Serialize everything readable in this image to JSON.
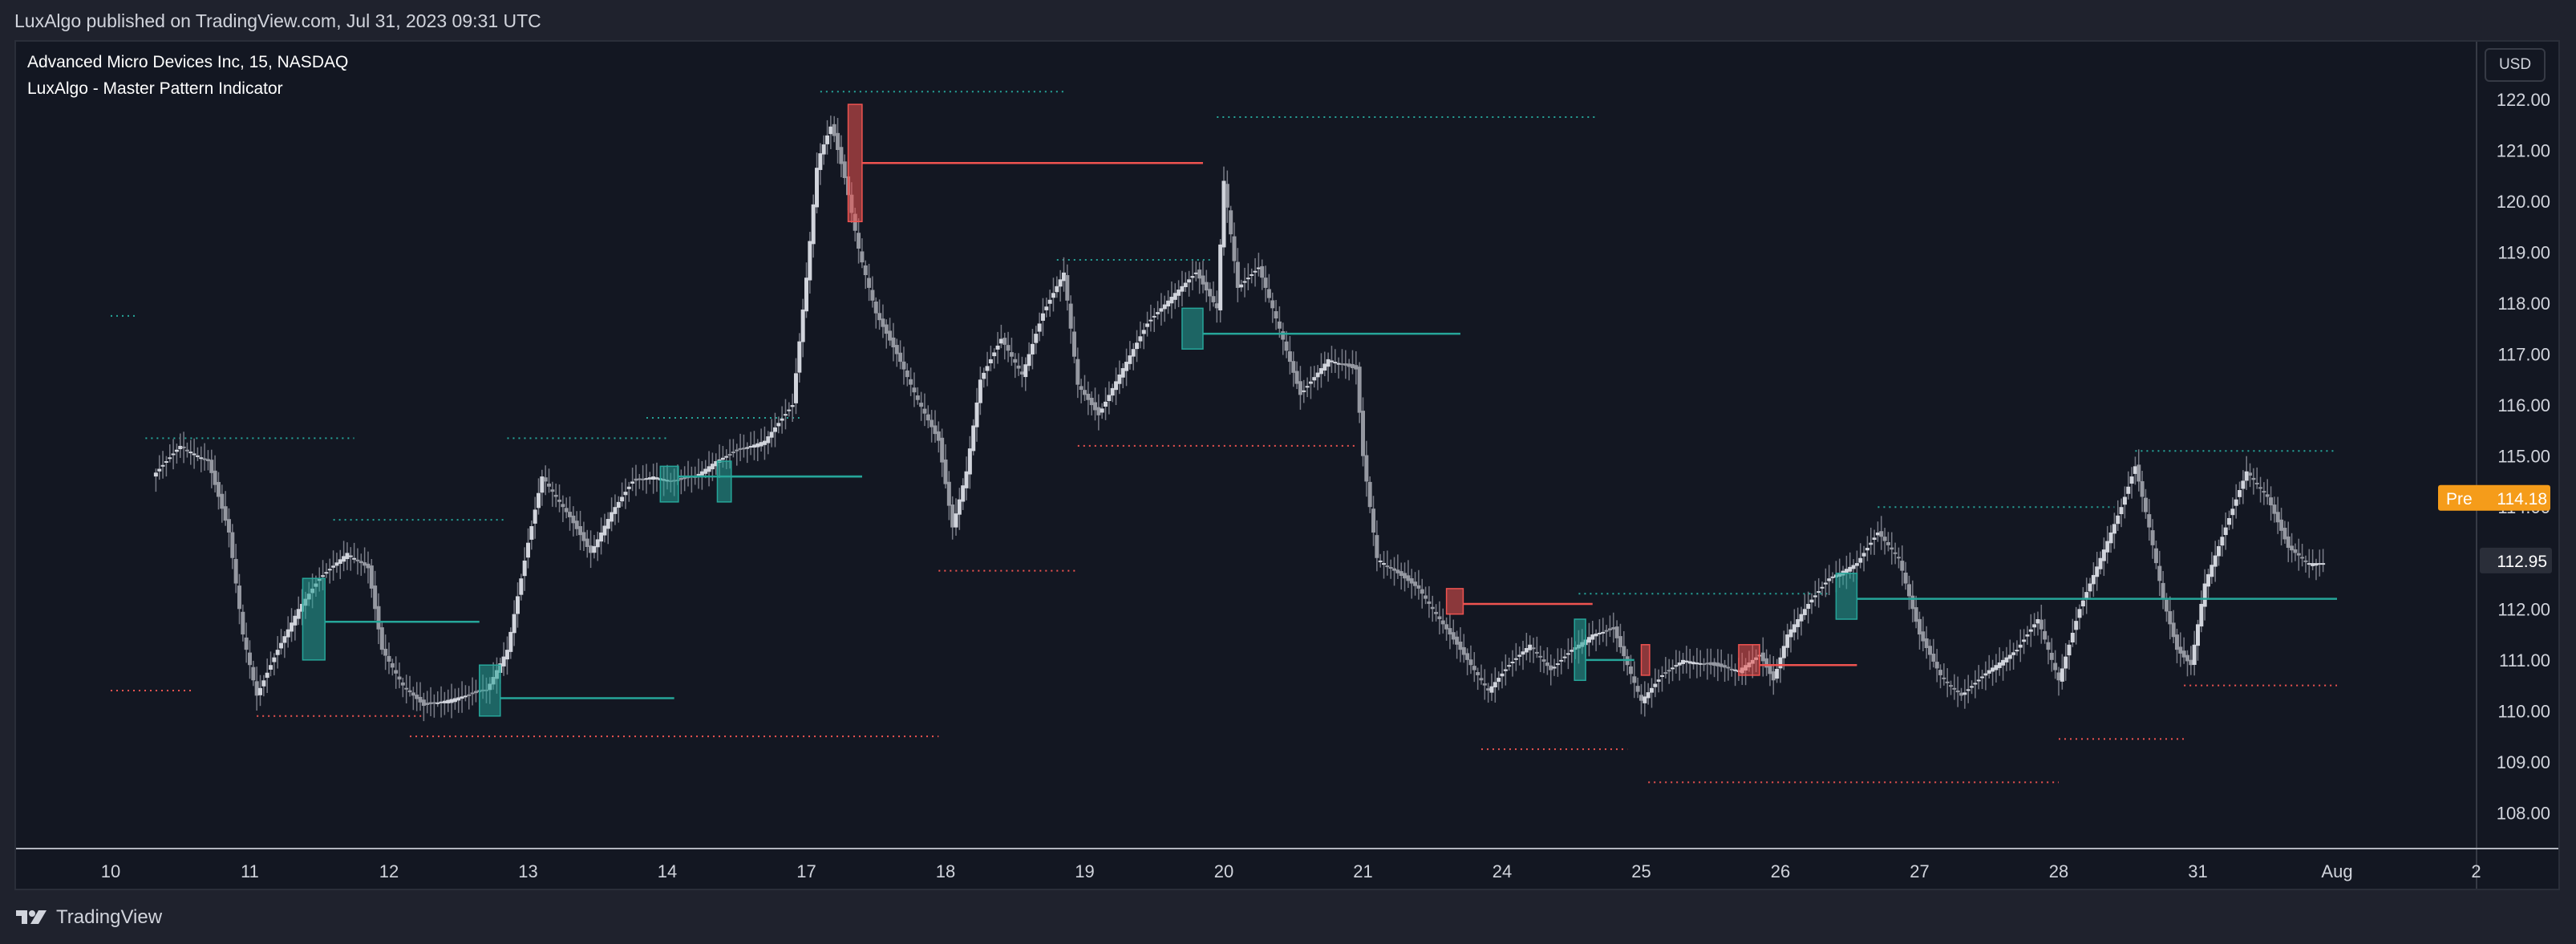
{
  "header": {
    "publish_text": "LuxAlgo published on TradingView.com, Jul 31, 2023 09:31 UTC"
  },
  "legend": {
    "symbol": "Advanced Micro Devices Inc, 15, NASDAQ",
    "indicator": "LuxAlgo - Master Pattern Indicator"
  },
  "currency": "USD",
  "footer": {
    "brand": "TradingView"
  },
  "colors": {
    "background": "#131722",
    "candle": "#b2b5be",
    "bullish": "#26a69a",
    "bearish": "#ef5350",
    "badge": "#f59c1a",
    "price_label": "#2a2e39"
  },
  "chart_data": {
    "type": "candlestick",
    "title": "",
    "ylim": [
      107.3,
      122.5
    ],
    "y_ticks": [
      "108.00",
      "109.00",
      "110.00",
      "111.00",
      "112.00",
      "113.00",
      "114.00",
      "115.00",
      "116.00",
      "117.00",
      "118.00",
      "119.00",
      "120.00",
      "121.00",
      "122.00"
    ],
    "x_ticks": [
      {
        "label": "10",
        "day": 1
      },
      {
        "label": "11",
        "day": 2
      },
      {
        "label": "12",
        "day": 3
      },
      {
        "label": "13",
        "day": 4
      },
      {
        "label": "14",
        "day": 5
      },
      {
        "label": "17",
        "day": 6
      },
      {
        "label": "18",
        "day": 7
      },
      {
        "label": "19",
        "day": 8
      },
      {
        "label": "20",
        "day": 9
      },
      {
        "label": "21",
        "day": 10
      },
      {
        "label": "24",
        "day": 11
      },
      {
        "label": "25",
        "day": 12
      },
      {
        "label": "26",
        "day": 13
      },
      {
        "label": "27",
        "day": 14
      },
      {
        "label": "28",
        "day": 15
      },
      {
        "label": "31",
        "day": 16
      },
      {
        "label": "Aug",
        "day": 17
      },
      {
        "label": "2",
        "day": 18
      }
    ],
    "price_path": [
      [
        0.3,
        114.6
      ],
      [
        0.5,
        115.2
      ],
      [
        0.7,
        114.9
      ],
      [
        0.85,
        113.5
      ],
      [
        0.95,
        111.5
      ],
      [
        1.05,
        110.3
      ],
      [
        1.2,
        111.2
      ],
      [
        1.35,
        112.0
      ],
      [
        1.5,
        112.6
      ],
      [
        1.7,
        113.1
      ],
      [
        1.85,
        112.8
      ],
      [
        1.95,
        111.2
      ],
      [
        2.1,
        110.5
      ],
      [
        2.25,
        110.1
      ],
      [
        2.4,
        110.2
      ],
      [
        2.55,
        110.3
      ],
      [
        2.7,
        110.4
      ],
      [
        2.85,
        111.2
      ],
      [
        3.0,
        113.3
      ],
      [
        3.1,
        114.6
      ],
      [
        3.3,
        113.8
      ],
      [
        3.45,
        113.1
      ],
      [
        3.6,
        113.9
      ],
      [
        3.75,
        114.5
      ],
      [
        3.9,
        114.6
      ],
      [
        4.05,
        114.5
      ],
      [
        4.2,
        114.6
      ],
      [
        4.35,
        114.9
      ],
      [
        4.5,
        115.1
      ],
      [
        4.7,
        115.3
      ],
      [
        4.9,
        116.0
      ],
      [
        5.0,
        118.5
      ],
      [
        5.08,
        120.8
      ],
      [
        5.18,
        121.5
      ],
      [
        5.28,
        120.4
      ],
      [
        5.38,
        119.0
      ],
      [
        5.5,
        117.8
      ],
      [
        5.65,
        117.0
      ],
      [
        5.8,
        116.1
      ],
      [
        5.95,
        115.3
      ],
      [
        6.05,
        113.6
      ],
      [
        6.15,
        114.7
      ],
      [
        6.25,
        116.5
      ],
      [
        6.4,
        117.3
      ],
      [
        6.55,
        116.6
      ],
      [
        6.7,
        117.8
      ],
      [
        6.85,
        118.6
      ],
      [
        6.95,
        116.4
      ],
      [
        7.1,
        115.8
      ],
      [
        7.25,
        116.6
      ],
      [
        7.45,
        117.6
      ],
      [
        7.65,
        118.2
      ],
      [
        7.8,
        118.6
      ],
      [
        7.95,
        117.9
      ],
      [
        8.0,
        120.4
      ],
      [
        8.1,
        118.3
      ],
      [
        8.25,
        118.7
      ],
      [
        8.4,
        117.5
      ],
      [
        8.55,
        116.2
      ],
      [
        8.75,
        116.9
      ],
      [
        8.95,
        116.7
      ],
      [
        9.0,
        115.0
      ],
      [
        9.1,
        113.0
      ],
      [
        9.25,
        112.7
      ],
      [
        9.4,
        112.4
      ],
      [
        9.55,
        111.8
      ],
      [
        9.7,
        111.2
      ],
      [
        9.9,
        110.4
      ],
      [
        10.05,
        110.9
      ],
      [
        10.2,
        111.3
      ],
      [
        10.35,
        110.8
      ],
      [
        10.5,
        111.2
      ],
      [
        10.65,
        111.5
      ],
      [
        10.8,
        111.6
      ],
      [
        11.0,
        110.2
      ],
      [
        11.15,
        110.7
      ],
      [
        11.3,
        111.0
      ],
      [
        11.5,
        110.9
      ],
      [
        11.7,
        110.8
      ],
      [
        11.85,
        111.1
      ],
      [
        11.95,
        110.6
      ],
      [
        12.05,
        111.5
      ],
      [
        12.2,
        112.1
      ],
      [
        12.35,
        112.6
      ],
      [
        12.55,
        112.9
      ],
      [
        12.7,
        113.5
      ],
      [
        12.85,
        113.0
      ],
      [
        13.0,
        111.5
      ],
      [
        13.15,
        110.7
      ],
      [
        13.3,
        110.3
      ],
      [
        13.5,
        110.8
      ],
      [
        13.7,
        111.2
      ],
      [
        13.85,
        111.8
      ],
      [
        14.0,
        110.6
      ],
      [
        14.15,
        112.0
      ],
      [
        14.3,
        113.0
      ],
      [
        14.45,
        114.0
      ],
      [
        14.55,
        114.8
      ],
      [
        14.65,
        113.6
      ],
      [
        14.75,
        112.2
      ],
      [
        14.85,
        111.2
      ],
      [
        14.95,
        110.9
      ],
      [
        15.05,
        112.5
      ],
      [
        15.2,
        113.6
      ],
      [
        15.35,
        114.7
      ],
      [
        15.5,
        114.2
      ],
      [
        15.65,
        113.2
      ],
      [
        15.8,
        112.9
      ],
      [
        15.92,
        112.9
      ]
    ],
    "levels": [
      {
        "name": "Advanced Micro Devices Inc, 15, NASDAQ",
        "value": 114.18,
        "badge": "Pre"
      },
      {
        "name": "LuxAlgo - Master Pattern Indicator",
        "value": 112.95
      }
    ],
    "patterns": [
      {
        "type": "bullish",
        "x0": 1.38,
        "x1": 1.54,
        "y0": 111.0,
        "y1": 112.6,
        "line": 111.75,
        "line_end": 2.65
      },
      {
        "type": "bullish",
        "x0": 2.65,
        "x1": 2.8,
        "y0": 109.9,
        "y1": 110.9,
        "line": 110.25,
        "line_end": 4.05
      },
      {
        "type": "bullish",
        "x0": 3.95,
        "x1": 4.08,
        "y0": 114.1,
        "y1": 114.8,
        "line": 114.6,
        "line_end": 5.4
      },
      {
        "type": "bullish",
        "x0": 4.36,
        "x1": 4.46,
        "y0": 114.1,
        "y1": 114.9,
        "line": 114.6,
        "line_end": 5.4
      },
      {
        "type": "bearish",
        "x0": 5.3,
        "x1": 5.4,
        "y0": 119.6,
        "y1": 121.9,
        "line": 120.75,
        "line_end": 7.85
      },
      {
        "type": "bullish",
        "x0": 7.7,
        "x1": 7.85,
        "y0": 117.1,
        "y1": 117.9,
        "line": 117.4,
        "line_end": 9.7
      },
      {
        "type": "bearish",
        "x0": 9.6,
        "x1": 9.72,
        "y0": 111.9,
        "y1": 112.4,
        "line": 112.1,
        "line_end": 10.65
      },
      {
        "type": "bullish",
        "x0": 10.52,
        "x1": 10.6,
        "y0": 110.6,
        "y1": 111.8,
        "line": 111.0,
        "line_end": 10.95
      },
      {
        "type": "bearish",
        "x0": 11.7,
        "x1": 11.85,
        "y0": 110.7,
        "y1": 111.3,
        "line": 110.9,
        "line_end": 12.55
      },
      {
        "type": "bullish",
        "x0": 12.4,
        "x1": 12.55,
        "y0": 111.8,
        "y1": 112.7,
        "line": 112.2,
        "line_end": 16.0
      },
      {
        "type": "bearish",
        "x0": 11.0,
        "x1": 11.06,
        "y0": 110.7,
        "y1": 111.3,
        "line": 110.9,
        "line_end": 11.0
      }
    ],
    "dotted_highs": [
      {
        "x0": 0.25,
        "x1": 1.75,
        "y": 115.35
      },
      {
        "x0": 1.6,
        "x1": 2.85,
        "y": 113.75
      },
      {
        "x0": 2.85,
        "x1": 4.0,
        "y": 115.35
      },
      {
        "x0": 3.85,
        "x1": 4.95,
        "y": 115.75
      },
      {
        "x0": 5.1,
        "x1": 6.85,
        "y": 122.15
      },
      {
        "x0": 6.8,
        "x1": 7.9,
        "y": 118.85
      },
      {
        "x0": 7.95,
        "x1": 10.68,
        "y": 121.65
      },
      {
        "x0": 10.55,
        "x1": 12.35,
        "y": 112.3
      },
      {
        "x0": 12.7,
        "x1": 14.4,
        "y": 114.0
      },
      {
        "x0": 14.55,
        "x1": 16.0,
        "y": 115.1
      },
      {
        "x0": 0.0,
        "x1": 0.2,
        "y": 117.75
      }
    ],
    "dotted_lows": [
      {
        "x0": 1.05,
        "x1": 2.25,
        "y": 109.9
      },
      {
        "x0": 2.15,
        "x1": 5.95,
        "y": 109.5
      },
      {
        "x0": 5.95,
        "x1": 6.95,
        "y": 112.75
      },
      {
        "x0": 6.95,
        "x1": 8.95,
        "y": 115.2
      },
      {
        "x0": 9.85,
        "x1": 10.9,
        "y": 109.25
      },
      {
        "x0": 11.05,
        "x1": 14.0,
        "y": 108.6
      },
      {
        "x0": 14.0,
        "x1": 14.9,
        "y": 109.45
      },
      {
        "x0": 14.9,
        "x1": 16.0,
        "y": 110.5
      },
      {
        "x0": 0.0,
        "x1": 0.6,
        "y": 110.4
      }
    ]
  }
}
